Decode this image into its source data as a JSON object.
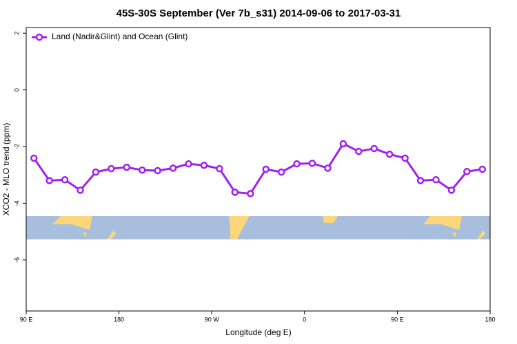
{
  "chart_data": {
    "type": "line",
    "title": "45S-30S September (Ver 7b_s31)   2014-09-06 to 2017-03-31",
    "x_label": "Longitude (deg E)",
    "y_label": "XCO2 - MLO trend (ppm)",
    "x": [
      97.5,
      112.5,
      127.5,
      142.5,
      157.5,
      172.5,
      187.5,
      202.5,
      217.5,
      232.5,
      247.5,
      262.5,
      277.5,
      292.5,
      307.5,
      322.5,
      337.5,
      352.5,
      367.5,
      382.5,
      397.5,
      412.5,
      427.5,
      442.5,
      457.5,
      472.5,
      487.5,
      502.5,
      517.5,
      532.5
    ],
    "series": [
      {
        "name": "Land (Nadir&Glint) and Ocean (Glint)",
        "color": "#a020f0",
        "values": [
          -2.41,
          -3.2,
          -3.17,
          -3.54,
          -2.9,
          -2.78,
          -2.73,
          -2.83,
          -2.85,
          -2.76,
          -2.61,
          -2.66,
          -2.78,
          -3.61,
          -3.66,
          -2.8,
          -2.9,
          -2.61,
          -2.59,
          -2.76,
          -1.9,
          -2.17,
          -2.07,
          -2.27,
          -2.41,
          -3.2,
          -3.17,
          -3.54,
          -2.88,
          -2.8
        ]
      }
    ],
    "xlim": [
      90,
      540
    ],
    "xticks": [
      {
        "value": 90,
        "label": "90 E"
      },
      180,
      {
        "value": 270,
        "label": "90 W"
      },
      {
        "value": 360,
        "label": "0"
      },
      {
        "value": 450,
        "label": "90 E"
      },
      {
        "value": 540,
        "label": "180"
      }
    ],
    "ylim": [
      -7.8,
      2.2
    ],
    "yticks": [
      -6,
      -4,
      -2,
      0,
      2
    ],
    "grid": false
  }
}
